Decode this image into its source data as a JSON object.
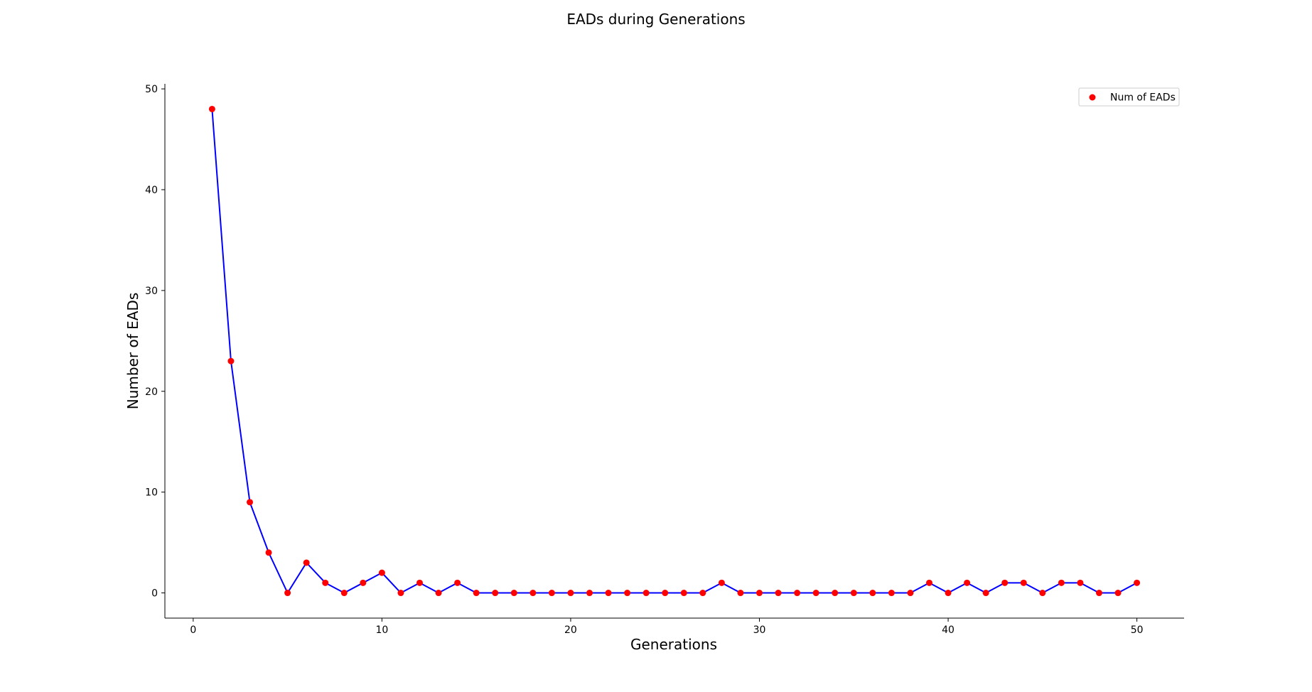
{
  "chart_data": {
    "type": "line",
    "title": "EADs during Generations",
    "xlabel": "Generations",
    "ylabel": "Number of EADs",
    "xlim": [
      -1.5,
      52.5
    ],
    "ylim": [
      -2.5,
      50.5
    ],
    "xticks": [
      0,
      10,
      20,
      30,
      40,
      50
    ],
    "yticks": [
      0,
      10,
      20,
      30,
      40,
      50
    ],
    "grid": false,
    "legend_position": "top-right",
    "series": [
      {
        "name": "Num of EADs",
        "line_color": "#0000ff",
        "marker_color": "#ff0000",
        "x": [
          1,
          2,
          3,
          4,
          5,
          6,
          7,
          8,
          9,
          10,
          11,
          12,
          13,
          14,
          15,
          16,
          17,
          18,
          19,
          20,
          21,
          22,
          23,
          24,
          25,
          26,
          27,
          28,
          29,
          30,
          31,
          32,
          33,
          34,
          35,
          36,
          37,
          38,
          39,
          40,
          41,
          42,
          43,
          44,
          45,
          46,
          47,
          48,
          49,
          50
        ],
        "values": [
          48,
          23,
          9,
          4,
          0,
          3,
          1,
          0,
          1,
          2,
          0,
          1,
          0,
          1,
          0,
          0,
          0,
          0,
          0,
          0,
          0,
          0,
          0,
          0,
          0,
          0,
          0,
          1,
          0,
          0,
          0,
          0,
          0,
          0,
          0,
          0,
          0,
          0,
          1,
          0,
          1,
          0,
          1,
          1,
          0,
          1,
          1,
          0,
          0,
          1
        ]
      }
    ]
  }
}
